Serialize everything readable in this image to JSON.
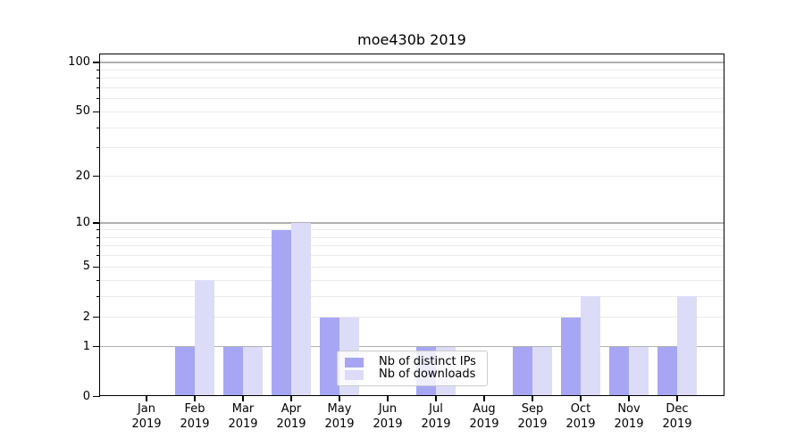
{
  "title": "moe430b 2019",
  "legend": {
    "items": [
      {
        "label": "Nb of distinct IPs",
        "color": "#a6a6f5"
      },
      {
        "label": "Nb of downloads",
        "color": "#dcdcf8"
      }
    ]
  },
  "axes": {
    "y_tick_labels": [
      "100",
      "50",
      "20",
      "10",
      "5",
      "2",
      "1",
      "0"
    ],
    "x_tick_year": "2019"
  },
  "chart_data": {
    "type": "bar",
    "title": "moe430b 2019",
    "categories": [
      "Jan 2019",
      "Feb 2019",
      "Mar 2019",
      "Apr 2019",
      "May 2019",
      "Jun 2019",
      "Jul 2019",
      "Aug 2019",
      "Sep 2019",
      "Oct 2019",
      "Nov 2019",
      "Dec 2019"
    ],
    "series": [
      {
        "name": "Nb of distinct IPs",
        "color": "#a6a6f5",
        "values": [
          0,
          1,
          1,
          9,
          2,
          0,
          1,
          0,
          1,
          2,
          1,
          1
        ]
      },
      {
        "name": "Nb of downloads",
        "color": "#dcdcf8",
        "values": [
          0,
          4,
          1,
          10,
          2,
          0,
          1,
          0,
          1,
          3,
          1,
          3
        ]
      }
    ],
    "xlabel": "",
    "ylabel": "",
    "y_scale": "log-like: vertical position proportional to log10(1 + value)",
    "y_labeled_ticks": [
      0,
      1,
      2,
      5,
      10,
      20,
      50,
      100
    ],
    "y_major_gridlines": [
      1,
      10,
      100
    ],
    "y_minor_gridlines": [
      2,
      3,
      4,
      5,
      6,
      7,
      8,
      9,
      20,
      30,
      40,
      50,
      60,
      70,
      80,
      90
    ],
    "ylim": [
      0,
      113
    ],
    "grid": "horizontal only; major gridlines darker than minor",
    "legend_position": "inside, lower center"
  },
  "colors": {
    "major_grid": "#b0b0b0",
    "minor_grid": "#ebebeb",
    "spine": "#000000",
    "background": "#ffffff"
  }
}
